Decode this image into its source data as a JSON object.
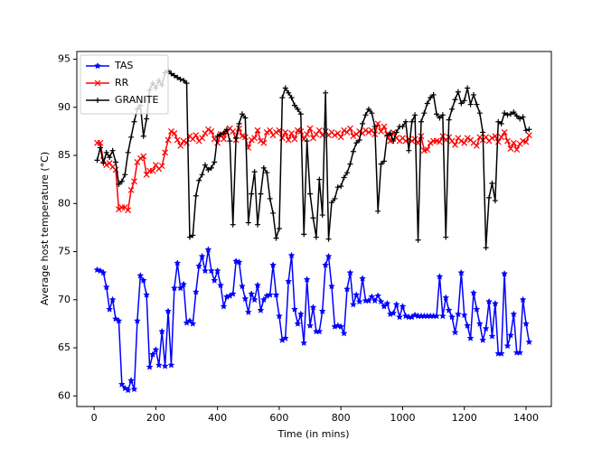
{
  "chart_data": {
    "type": "line",
    "xlabel": "Time (in mins)",
    "ylabel": "Average host temperature (°C)",
    "x": [
      10,
      20,
      30,
      40,
      50,
      60,
      70,
      80,
      90,
      100,
      110,
      120,
      130,
      140,
      150,
      160,
      170,
      180,
      190,
      200,
      210,
      220,
      230,
      240,
      250,
      260,
      270,
      280,
      290,
      300,
      310,
      320,
      330,
      340,
      350,
      360,
      370,
      380,
      390,
      400,
      410,
      420,
      430,
      440,
      450,
      460,
      470,
      480,
      490,
      500,
      510,
      520,
      530,
      540,
      550,
      560,
      570,
      580,
      590,
      600,
      610,
      620,
      630,
      640,
      650,
      660,
      670,
      680,
      690,
      700,
      710,
      720,
      730,
      740,
      750,
      760,
      770,
      780,
      790,
      800,
      810,
      820,
      830,
      840,
      850,
      860,
      870,
      880,
      890,
      900,
      910,
      920,
      930,
      940,
      950,
      960,
      970,
      980,
      990,
      1000,
      1010,
      1020,
      1030,
      1040,
      1050,
      1060,
      1070,
      1080,
      1090,
      1100,
      1110,
      1120,
      1130,
      1140,
      1150,
      1160,
      1170,
      1180,
      1190,
      1200,
      1210,
      1220,
      1230,
      1240,
      1250,
      1260,
      1270,
      1280,
      1290,
      1300,
      1310,
      1320,
      1330,
      1340,
      1350,
      1360,
      1370,
      1380,
      1390,
      1400,
      1410
    ],
    "series": [
      {
        "name": "TAS",
        "color": "#0000ff",
        "marker": "star",
        "values": [
          73.1,
          73,
          72.8,
          71.3,
          69,
          70,
          68,
          67.8,
          61.2,
          60.8,
          60.6,
          61.6,
          60.7,
          67.8,
          72.5,
          72,
          70.5,
          63,
          64.3,
          64.8,
          63.2,
          66.7,
          63.1,
          68.8,
          63.2,
          71.2,
          73.8,
          71.2,
          71.6,
          67.6,
          67.8,
          67.5,
          70.8,
          73.5,
          74.5,
          73,
          75.2,
          73,
          72,
          73,
          71.5,
          69.3,
          70.3,
          70.4,
          70.6,
          74,
          73.9,
          71.4,
          70.1,
          68.7,
          70.6,
          70,
          71.5,
          68.9,
          70,
          70.4,
          70.5,
          73.6,
          70.5,
          68.3,
          65.8,
          66,
          71.9,
          74.6,
          69,
          67.5,
          68.5,
          65.5,
          72.1,
          67.3,
          69.2,
          66.7,
          66.7,
          68.8,
          73.6,
          74.5,
          71.4,
          67.2,
          67.3,
          67.2,
          66.5,
          71.1,
          72.8,
          69.5,
          70.5,
          69.8,
          72.2,
          69.9,
          69.9,
          70.3,
          69.9,
          70.4,
          69.8,
          69.3,
          69.6,
          68.5,
          68.6,
          69.5,
          68.2,
          69.3,
          68.3,
          68.2,
          68.2,
          68.4,
          68.3,
          68.3,
          68.3,
          68.3,
          68.3,
          68.3,
          68.3,
          72.4,
          68.3,
          70.2,
          68.9,
          68.2,
          66.6,
          68.5,
          72.8,
          68.4,
          67.3,
          66,
          70.7,
          69,
          67.5,
          65.8,
          67,
          69.8,
          66.2,
          69.6,
          64.4,
          64.4,
          72.7,
          65.2,
          66.3,
          68.5,
          64.5,
          64.5,
          70,
          67.5,
          65.6
        ]
      },
      {
        "name": "RR",
        "color": "#ff0000",
        "marker": "x",
        "values": [
          86.3,
          86.3,
          84.5,
          84,
          84.2,
          83.8,
          83.5,
          79.4,
          79.6,
          79.6,
          79.3,
          81.4,
          82.3,
          84.3,
          84.7,
          84.9,
          83,
          83.4,
          83.4,
          84,
          83.6,
          83.9,
          85.3,
          86.6,
          87.5,
          87.3,
          86.6,
          86,
          86.5,
          86.3,
          87,
          86.7,
          87.1,
          86.5,
          86.8,
          87.3,
          87.7,
          87.5,
          86.7,
          86.3,
          87.2,
          86.7,
          87.4,
          87.8,
          87.5,
          86.6,
          87.8,
          87,
          86.9,
          85.8,
          86.6,
          86.8,
          87.6,
          86.5,
          86.3,
          87.4,
          87.6,
          87.1,
          87.4,
          87.6,
          86.8,
          87.4,
          86.6,
          87.3,
          86.7,
          87.6,
          87.5,
          86.7,
          87.2,
          87.8,
          86.8,
          87.2,
          87.6,
          87.1,
          87.5,
          87.1,
          87.4,
          87.1,
          87.3,
          86.9,
          87.6,
          87.4,
          87.8,
          87,
          87.2,
          87.5,
          87.3,
          87.6,
          87.4,
          87.6,
          87.2,
          88.3,
          87.5,
          88,
          87.2,
          86.5,
          87.4,
          86.8,
          86.5,
          86.8,
          86.5,
          86.7,
          86.5,
          86.7,
          86.3,
          87,
          85.5,
          85.6,
          86.3,
          86.5,
          86.5,
          86.4,
          87,
          86.6,
          86.9,
          86.5,
          86.1,
          86.8,
          86.5,
          86.3,
          86.8,
          86.6,
          86.3,
          86,
          86.9,
          86.6,
          86.9,
          86.5,
          86.8,
          87,
          86.4,
          86.9,
          87.4,
          86.5,
          85.7,
          86.3,
          85.6,
          86.2,
          86.5,
          86.4,
          87.1
        ]
      },
      {
        "name": "GRANITE",
        "color": "#000000",
        "marker": "plus",
        "values": [
          84.5,
          85.8,
          84.2,
          85.3,
          84.8,
          85.5,
          84.3,
          82,
          82.3,
          83,
          85.3,
          86.9,
          88.5,
          89.8,
          90.2,
          87,
          88.8,
          91.8,
          92.5,
          92,
          92.8,
          92.3,
          93.6,
          93.8,
          93.5,
          93.3,
          93.1,
          92.9,
          92.8,
          92.5,
          76.5,
          76.7,
          80.8,
          82.4,
          83,
          84,
          83.5,
          83.7,
          84.3,
          87,
          87.2,
          87.3,
          87.7,
          86.5,
          77.8,
          86.8,
          88.3,
          89.3,
          88.9,
          78,
          81,
          83.3,
          77.8,
          81,
          83.7,
          83.2,
          80.5,
          79,
          76.4,
          77.4,
          91,
          92,
          91.5,
          91,
          90.2,
          89.8,
          89.3,
          76.8,
          86.5,
          81,
          78.5,
          76.5,
          82.5,
          78.8,
          91.5,
          76.3,
          80.1,
          80.5,
          81.7,
          81.8,
          82.7,
          83.2,
          84.1,
          85.4,
          86.3,
          86.6,
          88.3,
          89.2,
          89.8,
          89.4,
          88,
          79.2,
          84.1,
          84.4,
          87.1,
          87.3,
          86.5,
          87.4,
          88,
          88,
          88.5,
          85.5,
          88.5,
          89.2,
          76.2,
          88.5,
          89.4,
          90.4,
          91,
          91.3,
          89.3,
          88.9,
          89.2,
          76.5,
          88.7,
          89.8,
          90.8,
          91.6,
          90.4,
          90.7,
          92,
          90.3,
          91.3,
          90.3,
          89.4,
          87.4,
          75.4,
          80.6,
          82.1,
          80.3,
          88.5,
          88.3,
          89.4,
          89.2,
          89.3,
          89.5,
          89.1,
          88.8,
          89,
          87.6,
          87.7
        ]
      }
    ],
    "xlim": [
      -56,
      1482
    ],
    "xticks": [
      0,
      200,
      400,
      600,
      800,
      1000,
      1200,
      1400
    ],
    "ylim": [
      58.9,
      95.8
    ],
    "yticks": [
      60,
      65,
      70,
      75,
      80,
      85,
      90,
      95
    ],
    "legend": "upper left"
  }
}
